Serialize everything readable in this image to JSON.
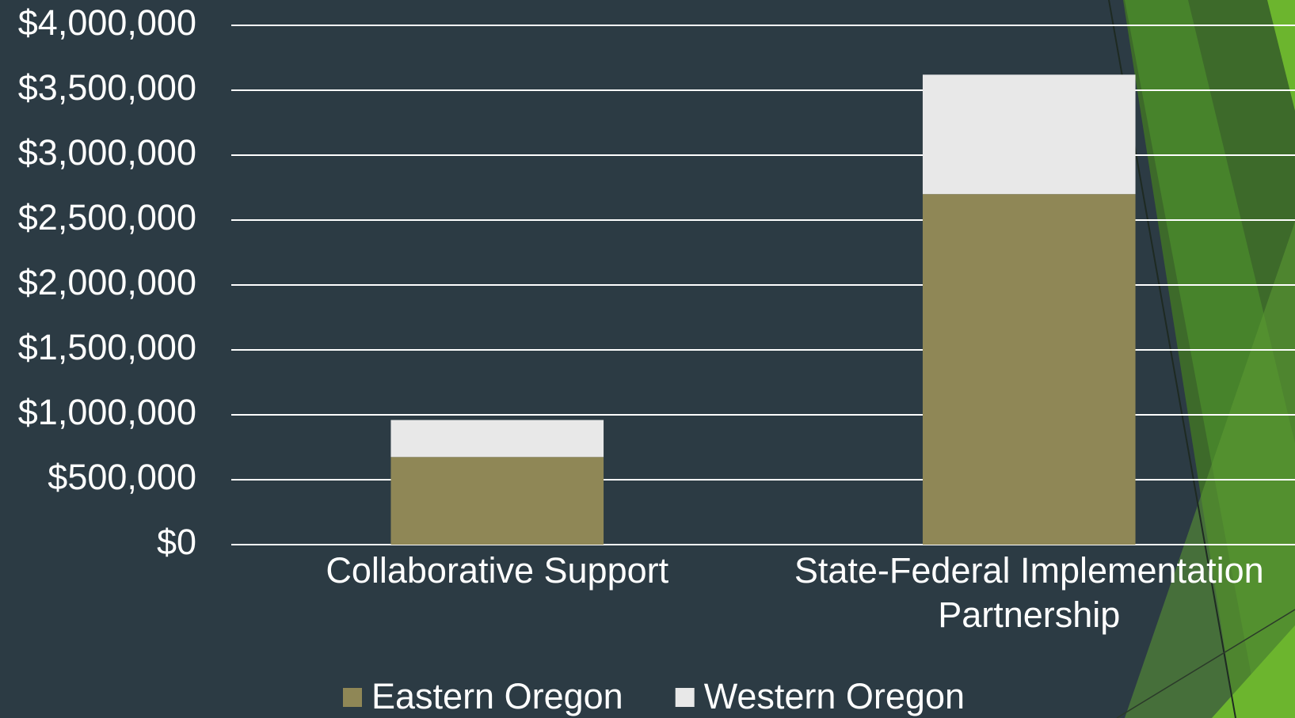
{
  "chart_data": {
    "type": "stacked_bar",
    "categories": [
      "Collaborative Support",
      "State-Federal Implementation Partnership"
    ],
    "series": [
      {
        "name": "Eastern Oregon",
        "color": "#8f8756",
        "values": [
          675000,
          2700000
        ]
      },
      {
        "name": "Western Oregon",
        "color": "#e8e8e8",
        "values": [
          285000,
          920000
        ]
      }
    ],
    "ylim": [
      0,
      4000000
    ],
    "yticks": [
      0,
      {
        "value": 500000,
        "label": "$500,000"
      },
      {
        "value": 1000000,
        "label": "$1,000,000"
      },
      {
        "value": 1500000,
        "label": "$1,500,000"
      },
      {
        "value": 2000000,
        "label": "$2,000,000"
      },
      {
        "value": 2500000,
        "label": "$2,500,000"
      },
      {
        "value": 3000000,
        "label": "$3,000,000"
      },
      {
        "value": 3500000,
        "label": "$3,500,000"
      },
      {
        "value": 4000000,
        "label": "$4,000,000"
      }
    ],
    "ytick_zero_label": "$0",
    "grid": true,
    "legend": "bottom"
  }
}
